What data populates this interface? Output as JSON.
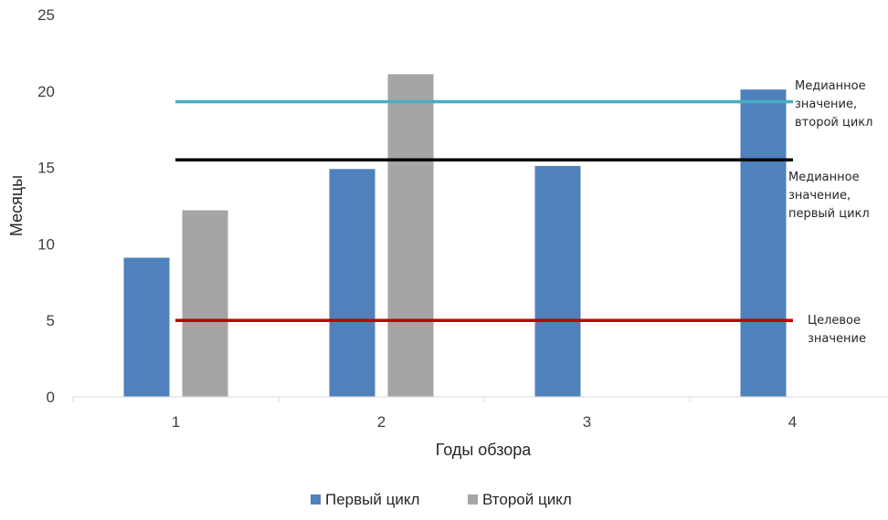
{
  "chart_data": {
    "type": "bar",
    "categories": [
      "1",
      "2",
      "3",
      "4"
    ],
    "series": [
      {
        "name": "Первый цикл",
        "color": "#4f81bd",
        "values": [
          9.1,
          14.9,
          15.1,
          20.1
        ]
      },
      {
        "name": "Второй цикл",
        "color": "#a5a5a5",
        "values": [
          12.2,
          21.1,
          null,
          null
        ]
      }
    ],
    "reference_lines": [
      {
        "id": "median-second",
        "value": 19.3,
        "color": "#4bacc6",
        "label_lines": [
          "Медианное",
          "значение,",
          "второй цикл"
        ]
      },
      {
        "id": "median-first",
        "value": 15.5,
        "color": "#000000",
        "label_lines": [
          "Медианное",
          "значение,",
          "первый цикл"
        ]
      },
      {
        "id": "target",
        "value": 5,
        "color": "#c00000",
        "label_lines": [
          "Целевое",
          "значение"
        ]
      }
    ],
    "xlabel": "Годы обзора",
    "ylabel": "Месяцы",
    "ylim": [
      0,
      25
    ],
    "yticks": [
      0,
      5,
      10,
      15,
      20,
      25
    ],
    "grid": false,
    "legend_position": "bottom"
  }
}
